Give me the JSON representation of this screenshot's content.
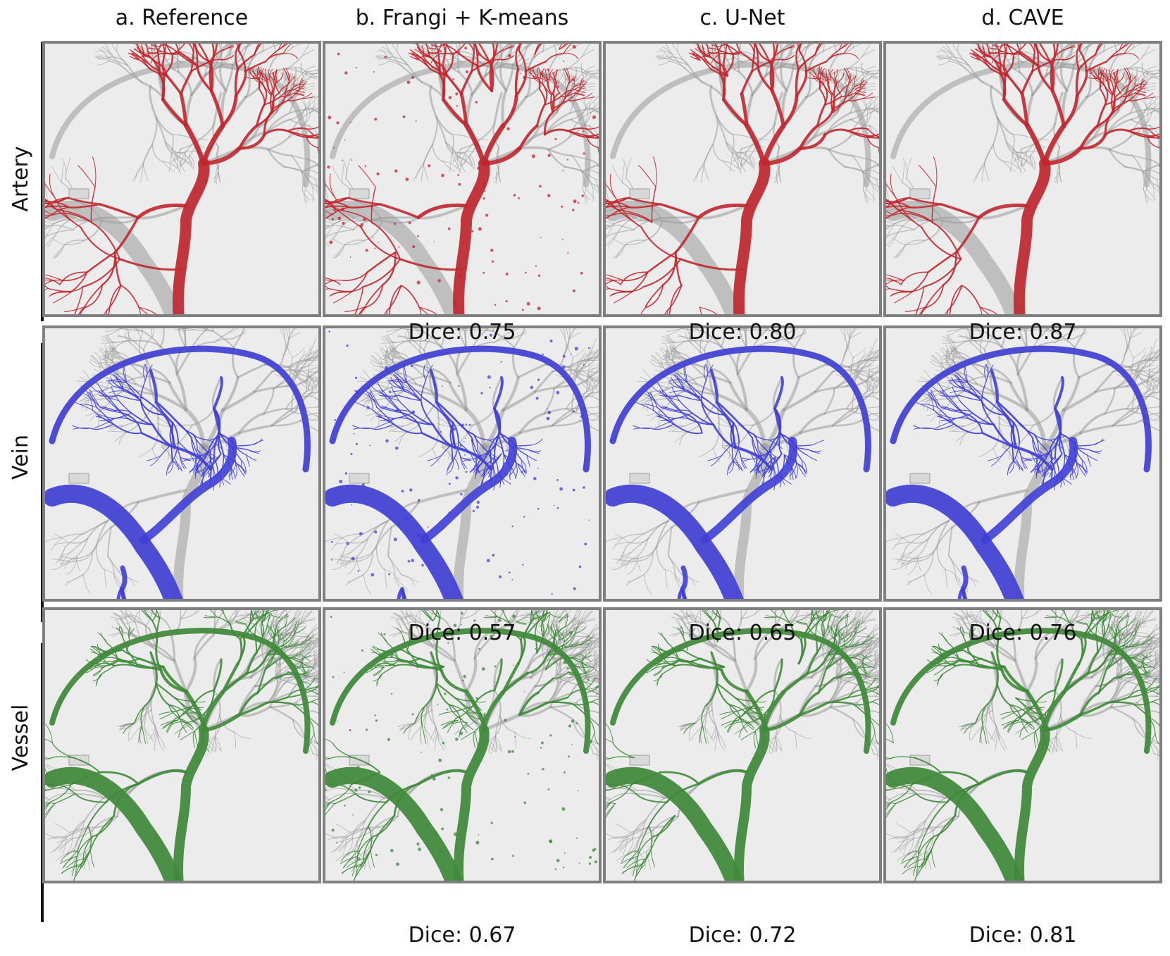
{
  "columns": [
    "a. Reference",
    "b. Frangi + K-means",
    "c. U-Net",
    "d. CAVE"
  ],
  "rows": [
    {
      "label": "Artery",
      "color": "#c1272d",
      "dice": [
        "",
        "Dice: 0.75",
        "Dice: 0.80",
        "Dice: 0.87"
      ]
    },
    {
      "label": "Vein",
      "color": "#3f3fd6",
      "dice": [
        "",
        "Dice: 0.57",
        "Dice: 0.65",
        "Dice: 0.76"
      ]
    },
    {
      "label": "Vessel",
      "color": "#3f8a3a",
      "dice": [
        "",
        "Dice: 0.67",
        "Dice: 0.72",
        "Dice: 0.81"
      ]
    }
  ]
}
